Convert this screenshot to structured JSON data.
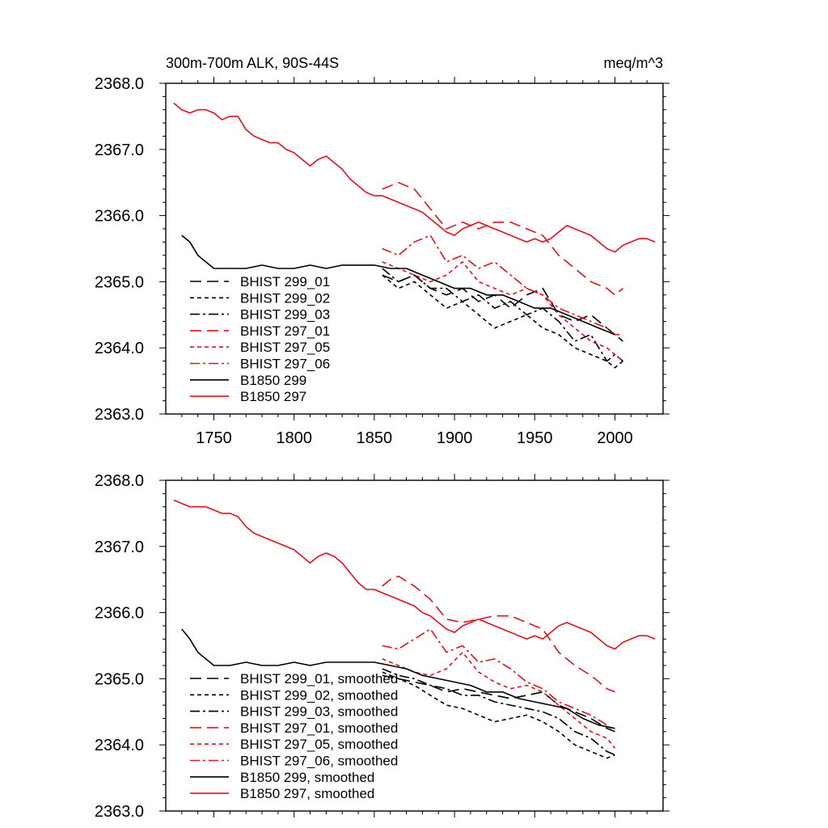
{
  "figure": {
    "top_title_left": "300m-700m ALK, 90S-44S",
    "top_title_right": "meq/m^3"
  },
  "chart_data": [
    {
      "type": "line",
      "title": "300m-700m ALK, 90S-44S",
      "units": "meq/m^3",
      "xlim": [
        1720,
        2030
      ],
      "ylim": [
        2363.0,
        2368.0
      ],
      "xticks": [
        1750,
        1800,
        1850,
        1900,
        1950,
        2000
      ],
      "xtick_labels": [
        "1750",
        "1800",
        "1850",
        "1900",
        "1950",
        "2000"
      ],
      "yticks": [
        2363.0,
        2364.0,
        2365.0,
        2366.0,
        2367.0,
        2368.0
      ],
      "ytick_labels": [
        "2363.0",
        "2364.0",
        "2365.0",
        "2366.0",
        "2367.0",
        "2368.0"
      ],
      "legend_placement": "lower-left",
      "series": [
        {
          "name": "BHIST 299_01",
          "color": "#000000",
          "dash": "long-dash",
          "x": [
            1855,
            1865,
            1875,
            1885,
            1895,
            1905,
            1915,
            1925,
            1935,
            1945,
            1955,
            1965,
            1975,
            1985,
            1995,
            2000,
            2005
          ],
          "y": [
            2365.1,
            2365.0,
            2365.1,
            2364.9,
            2364.8,
            2364.9,
            2364.7,
            2364.8,
            2364.6,
            2364.8,
            2364.9,
            2364.5,
            2364.4,
            2364.5,
            2364.3,
            2364.2,
            2364.1
          ]
        },
        {
          "name": "BHIST 299_02",
          "color": "#000000",
          "dash": "short-dash",
          "x": [
            1855,
            1865,
            1875,
            1885,
            1895,
            1905,
            1915,
            1925,
            1935,
            1945,
            1955,
            1965,
            1975,
            1985,
            1995,
            2000,
            2005
          ],
          "y": [
            2365.1,
            2364.9,
            2365.0,
            2364.8,
            2364.6,
            2364.7,
            2364.5,
            2364.3,
            2364.4,
            2364.5,
            2364.3,
            2364.2,
            2364.0,
            2363.9,
            2363.8,
            2363.7,
            2363.8
          ]
        },
        {
          "name": "BHIST 299_03",
          "color": "#000000",
          "dash": "dash-dot",
          "x": [
            1855,
            1865,
            1875,
            1885,
            1895,
            1905,
            1915,
            1925,
            1935,
            1945,
            1955,
            1965,
            1975,
            1985,
            1995,
            2000,
            2005
          ],
          "y": [
            2365.2,
            2365.0,
            2365.1,
            2364.9,
            2364.9,
            2364.7,
            2364.8,
            2364.6,
            2364.7,
            2364.5,
            2364.6,
            2364.4,
            2364.1,
            2364.2,
            2363.8,
            2363.9,
            2363.8
          ]
        },
        {
          "name": "BHIST 297_01",
          "color": "#e8101a",
          "dash": "long-dash",
          "x": [
            1855,
            1865,
            1875,
            1885,
            1895,
            1905,
            1915,
            1925,
            1935,
            1945,
            1955,
            1965,
            1975,
            1985,
            1995,
            2000,
            2005
          ],
          "y": [
            2366.4,
            2366.5,
            2366.4,
            2366.1,
            2365.8,
            2365.9,
            2365.8,
            2365.9,
            2365.9,
            2365.8,
            2365.7,
            2365.4,
            2365.2,
            2365.0,
            2364.9,
            2364.8,
            2364.9
          ]
        },
        {
          "name": "BHIST 297_05",
          "color": "#e8101a",
          "dash": "short-dash",
          "x": [
            1855,
            1865,
            1875,
            1885,
            1895,
            1905,
            1915,
            1925,
            1935,
            1945,
            1955,
            1965,
            1975,
            1985,
            1995,
            2000,
            2005
          ],
          "y": [
            2365.3,
            2365.2,
            2365.1,
            2365.0,
            2365.1,
            2365.3,
            2365.0,
            2364.9,
            2364.8,
            2364.9,
            2364.8,
            2364.5,
            2364.3,
            2364.1,
            2364.0,
            2363.9,
            2363.8
          ]
        },
        {
          "name": "BHIST 297_06",
          "color": "#e8101a",
          "dash": "dash-dot",
          "x": [
            1855,
            1865,
            1875,
            1885,
            1895,
            1905,
            1915,
            1925,
            1935,
            1945,
            1955,
            1965,
            1975,
            1985,
            1995,
            2000,
            2005
          ],
          "y": [
            2365.5,
            2365.4,
            2365.6,
            2365.7,
            2365.3,
            2365.4,
            2365.2,
            2365.3,
            2365.1,
            2364.9,
            2364.8,
            2364.6,
            2364.5,
            2364.4,
            2364.3,
            2364.2,
            2364.2
          ]
        },
        {
          "name": "B1850 299",
          "color": "#000000",
          "dash": "solid",
          "x": [
            1730,
            1735,
            1740,
            1745,
            1750,
            1760,
            1770,
            1780,
            1790,
            1800,
            1810,
            1820,
            1830,
            1840,
            1850,
            1860,
            1870,
            1880,
            1890,
            1900,
            1910,
            1920,
            1930,
            1940,
            1950,
            1960,
            1970,
            1980,
            1990,
            2000
          ],
          "y": [
            2365.7,
            2365.6,
            2365.4,
            2365.3,
            2365.2,
            2365.2,
            2365.2,
            2365.25,
            2365.2,
            2365.2,
            2365.25,
            2365.2,
            2365.25,
            2365.25,
            2365.25,
            2365.2,
            2365.2,
            2365.1,
            2365.0,
            2364.9,
            2364.9,
            2364.8,
            2364.8,
            2364.7,
            2364.6,
            2364.6,
            2364.5,
            2364.4,
            2364.3,
            2364.2
          ]
        },
        {
          "name": "B1850 297",
          "color": "#e8101a",
          "dash": "solid",
          "x": [
            1725,
            1730,
            1735,
            1740,
            1745,
            1750,
            1755,
            1760,
            1765,
            1770,
            1775,
            1780,
            1785,
            1790,
            1795,
            1800,
            1805,
            1810,
            1815,
            1820,
            1825,
            1830,
            1835,
            1840,
            1845,
            1850,
            1855,
            1860,
            1865,
            1870,
            1875,
            1880,
            1885,
            1890,
            1895,
            1900,
            1905,
            1910,
            1915,
            1920,
            1925,
            1930,
            1935,
            1940,
            1945,
            1950,
            1955,
            1960,
            1965,
            1970,
            1975,
            1980,
            1985,
            1990,
            1995,
            2000,
            2005,
            2010,
            2015,
            2020,
            2025
          ],
          "y": [
            2367.7,
            2367.6,
            2367.55,
            2367.6,
            2367.6,
            2367.55,
            2367.45,
            2367.5,
            2367.5,
            2367.3,
            2367.2,
            2367.15,
            2367.1,
            2367.1,
            2367.0,
            2366.95,
            2366.85,
            2366.75,
            2366.85,
            2366.9,
            2366.8,
            2366.7,
            2366.55,
            2366.45,
            2366.35,
            2366.3,
            2366.3,
            2366.25,
            2366.2,
            2366.15,
            2366.1,
            2366.05,
            2365.95,
            2365.85,
            2365.75,
            2365.7,
            2365.8,
            2365.85,
            2365.9,
            2365.85,
            2365.8,
            2365.75,
            2365.7,
            2365.65,
            2365.6,
            2365.65,
            2365.6,
            2365.65,
            2365.75,
            2365.85,
            2365.8,
            2365.75,
            2365.7,
            2365.6,
            2365.5,
            2365.45,
            2365.55,
            2365.6,
            2365.65,
            2365.65,
            2365.6
          ]
        }
      ]
    },
    {
      "type": "line",
      "title": "",
      "xlim": [
        1720,
        2030
      ],
      "ylim": [
        2363.0,
        2368.0
      ],
      "yticks": [
        2363.0,
        2364.0,
        2365.0,
        2366.0,
        2367.0,
        2368.0
      ],
      "ytick_labels": [
        "2363.0",
        "2364.0",
        "2365.0",
        "2366.0",
        "2367.0",
        "2368.0"
      ],
      "legend_placement": "lower-left",
      "series": [
        {
          "name": "BHIST 299_01, smoothed",
          "color": "#000000",
          "dash": "long-dash",
          "x": [
            1855,
            1865,
            1875,
            1885,
            1895,
            1905,
            1915,
            1925,
            1935,
            1945,
            1955,
            1965,
            1975,
            1985,
            1995,
            2000
          ],
          "y": [
            2365.05,
            2365.0,
            2364.95,
            2364.9,
            2364.8,
            2364.85,
            2364.8,
            2364.75,
            2364.7,
            2364.75,
            2364.8,
            2364.6,
            2364.5,
            2364.4,
            2364.25,
            2364.2
          ]
        },
        {
          "name": "BHIST 299_02, smoothed",
          "color": "#000000",
          "dash": "short-dash",
          "x": [
            1855,
            1865,
            1875,
            1885,
            1895,
            1905,
            1915,
            1925,
            1935,
            1945,
            1955,
            1965,
            1975,
            1985,
            1995,
            2000
          ],
          "y": [
            2365.1,
            2365.0,
            2364.9,
            2364.75,
            2364.6,
            2364.55,
            2364.45,
            2364.35,
            2364.4,
            2364.45,
            2364.35,
            2364.2,
            2364.0,
            2363.9,
            2363.8,
            2363.85
          ]
        },
        {
          "name": "BHIST 299_03, smoothed",
          "color": "#000000",
          "dash": "dash-dot",
          "x": [
            1855,
            1865,
            1875,
            1885,
            1895,
            1905,
            1915,
            1925,
            1935,
            1945,
            1955,
            1965,
            1975,
            1985,
            1995,
            2000
          ],
          "y": [
            2365.15,
            2365.05,
            2365.0,
            2364.9,
            2364.85,
            2364.75,
            2364.75,
            2364.65,
            2364.6,
            2364.55,
            2364.5,
            2364.4,
            2364.2,
            2364.1,
            2363.9,
            2363.85
          ]
        },
        {
          "name": "BHIST 297_01, smoothed",
          "color": "#e8101a",
          "dash": "long-dash",
          "x": [
            1855,
            1860,
            1865,
            1875,
            1885,
            1895,
            1905,
            1915,
            1925,
            1935,
            1945,
            1955,
            1965,
            1975,
            1985,
            1995,
            2000
          ],
          "y": [
            2366.4,
            2366.5,
            2366.55,
            2366.4,
            2366.2,
            2365.9,
            2365.85,
            2365.9,
            2365.95,
            2365.95,
            2365.85,
            2365.75,
            2365.4,
            2365.2,
            2365.05,
            2364.85,
            2364.8
          ]
        },
        {
          "name": "BHIST 297_05, smoothed",
          "color": "#e8101a",
          "dash": "short-dash",
          "x": [
            1855,
            1865,
            1875,
            1885,
            1895,
            1905,
            1915,
            1925,
            1935,
            1945,
            1955,
            1965,
            1975,
            1985,
            1995,
            2000
          ],
          "y": [
            2365.3,
            2365.2,
            2365.1,
            2365.05,
            2365.15,
            2365.4,
            2365.1,
            2364.95,
            2364.85,
            2364.9,
            2364.8,
            2364.6,
            2364.4,
            2364.2,
            2364.1,
            2363.95
          ]
        },
        {
          "name": "BHIST 297_06, smoothed",
          "color": "#e8101a",
          "dash": "dash-dot",
          "x": [
            1855,
            1865,
            1875,
            1885,
            1895,
            1905,
            1915,
            1925,
            1935,
            1945,
            1955,
            1965,
            1975,
            1985,
            1995,
            2000
          ],
          "y": [
            2365.5,
            2365.45,
            2365.6,
            2365.75,
            2365.4,
            2365.5,
            2365.25,
            2365.3,
            2365.15,
            2364.95,
            2364.85,
            2364.65,
            2364.55,
            2364.45,
            2364.3,
            2364.2
          ]
        },
        {
          "name": "B1850 299, smoothed",
          "color": "#000000",
          "dash": "solid",
          "x": [
            1730,
            1735,
            1740,
            1745,
            1750,
            1755,
            1760,
            1770,
            1780,
            1790,
            1800,
            1810,
            1820,
            1830,
            1840,
            1850,
            1860,
            1870,
            1880,
            1890,
            1900,
            1910,
            1920,
            1930,
            1940,
            1950,
            1960,
            1970,
            1980,
            1990,
            2000
          ],
          "y": [
            2365.75,
            2365.6,
            2365.4,
            2365.3,
            2365.2,
            2365.2,
            2365.2,
            2365.25,
            2365.2,
            2365.2,
            2365.25,
            2365.2,
            2365.25,
            2365.25,
            2365.25,
            2365.25,
            2365.2,
            2365.15,
            2365.05,
            2365.0,
            2364.95,
            2364.9,
            2364.8,
            2364.8,
            2364.7,
            2364.65,
            2364.6,
            2364.55,
            2364.4,
            2364.3,
            2364.25
          ]
        },
        {
          "name": "B1850 297, smoothed",
          "color": "#e8101a",
          "dash": "solid",
          "x": [
            1725,
            1730,
            1735,
            1740,
            1745,
            1750,
            1755,
            1760,
            1765,
            1770,
            1775,
            1780,
            1785,
            1790,
            1795,
            1800,
            1805,
            1810,
            1815,
            1820,
            1825,
            1830,
            1835,
            1840,
            1845,
            1850,
            1855,
            1860,
            1865,
            1870,
            1875,
            1880,
            1885,
            1890,
            1895,
            1900,
            1905,
            1910,
            1915,
            1920,
            1925,
            1930,
            1935,
            1940,
            1945,
            1950,
            1955,
            1960,
            1965,
            1970,
            1975,
            1980,
            1985,
            1990,
            1995,
            2000,
            2005,
            2010,
            2015,
            2020,
            2025
          ],
          "y": [
            2367.7,
            2367.65,
            2367.6,
            2367.6,
            2367.6,
            2367.55,
            2367.5,
            2367.5,
            2367.45,
            2367.3,
            2367.2,
            2367.15,
            2367.1,
            2367.05,
            2367.0,
            2366.95,
            2366.85,
            2366.75,
            2366.85,
            2366.9,
            2366.85,
            2366.75,
            2366.6,
            2366.45,
            2366.35,
            2366.35,
            2366.3,
            2366.25,
            2366.2,
            2366.15,
            2366.1,
            2366.0,
            2365.95,
            2365.85,
            2365.75,
            2365.7,
            2365.8,
            2365.85,
            2365.9,
            2365.85,
            2365.8,
            2365.75,
            2365.7,
            2365.65,
            2365.6,
            2365.65,
            2365.6,
            2365.7,
            2365.8,
            2365.85,
            2365.8,
            2365.75,
            2365.7,
            2365.6,
            2365.5,
            2365.45,
            2365.55,
            2365.6,
            2365.65,
            2365.65,
            2365.6
          ]
        }
      ]
    }
  ]
}
